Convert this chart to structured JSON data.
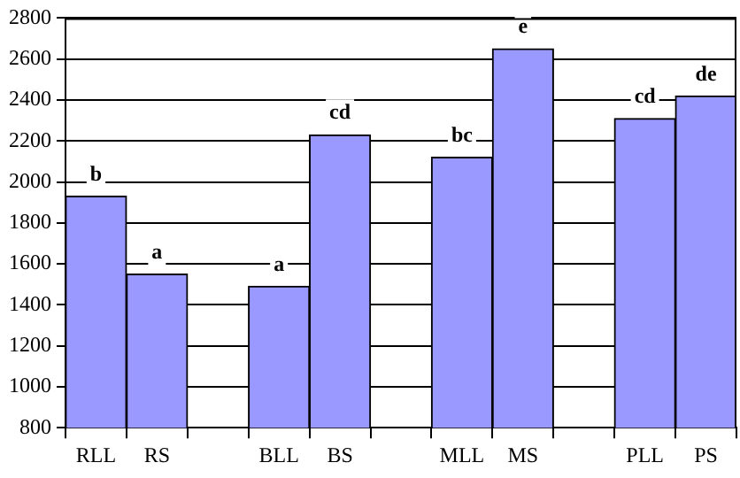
{
  "chart_data": {
    "type": "bar",
    "categories": [
      "RLL",
      "RS",
      null,
      "BLL",
      "BS",
      null,
      "MLL",
      "MS",
      null,
      "PLL",
      "PS"
    ],
    "values": [
      1930,
      1550,
      null,
      1490,
      2230,
      null,
      2120,
      2650,
      null,
      2310,
      2420
    ],
    "color": "#9999ff",
    "ylim": [
      800,
      2800
    ],
    "yticks": [
      800,
      1000,
      1200,
      1400,
      1600,
      1800,
      2000,
      2200,
      2400,
      2600,
      2800
    ],
    "grid": "y",
    "legend": false,
    "annotations": [
      {
        "text": "b",
        "x": "RLL",
        "y": 1930
      },
      {
        "text": "a",
        "x": "RS",
        "y": 1550
      },
      {
        "text": "a",
        "x": "BLL",
        "y": 1490
      },
      {
        "text": "cd",
        "x": "BS",
        "y": 2230
      },
      {
        "text": "bc",
        "x": "MLL",
        "y": 2120
      },
      {
        "text": "e",
        "x": "MS",
        "y": 2650
      },
      {
        "text": "cd",
        "x": "PLL",
        "y": 2310
      },
      {
        "text": "de",
        "x": "PS",
        "y": 2420
      }
    ]
  }
}
